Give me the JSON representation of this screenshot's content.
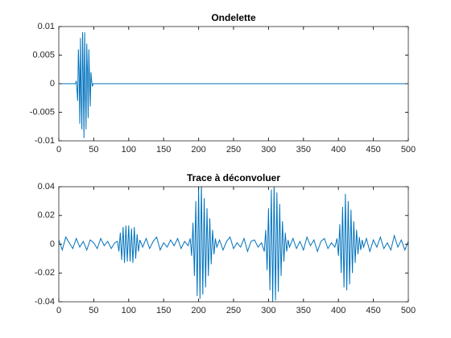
{
  "chart_data": [
    {
      "type": "line",
      "title": "Ondelette",
      "color": "#0072bd",
      "x": [
        0,
        24,
        25,
        26,
        27,
        28,
        29,
        30,
        31,
        32,
        33,
        34,
        35,
        36,
        37,
        38,
        39,
        40,
        41,
        42,
        43,
        44,
        45,
        46,
        47,
        48,
        49,
        500
      ],
      "values": [
        0,
        0,
        0.0005,
        -0.001,
        -0.003,
        0.006,
        0.002,
        -0.007,
        0.008,
        -0.002,
        -0.008,
        0.009,
        0.001,
        -0.0095,
        0.009,
        -0.001,
        -0.008,
        0.007,
        0.002,
        -0.006,
        0.006,
        0.001,
        -0.004,
        0.002,
        0.0005,
        -0.0005,
        0,
        0
      ],
      "xlim": [
        0,
        500
      ],
      "xticks": [
        0,
        50,
        100,
        150,
        200,
        250,
        300,
        350,
        400,
        450,
        500
      ],
      "ylim": [
        -0.01,
        0.01
      ],
      "yticks": [
        -0.01,
        -0.005,
        0,
        0.005,
        0.01
      ]
    },
    {
      "type": "line",
      "title": "Trace à déconvoluer",
      "color": "#0072bd",
      "x": [
        0,
        5,
        10,
        15,
        20,
        25,
        30,
        35,
        40,
        45,
        50,
        55,
        60,
        65,
        70,
        75,
        80,
        84,
        86,
        88,
        90,
        92,
        94,
        96,
        98,
        100,
        102,
        104,
        106,
        108,
        110,
        112,
        114,
        116,
        120,
        125,
        130,
        135,
        140,
        145,
        150,
        155,
        160,
        165,
        170,
        175,
        180,
        185,
        188,
        190,
        192,
        194,
        196,
        198,
        200,
        202,
        204,
        206,
        208,
        210,
        212,
        214,
        216,
        218,
        220,
        222,
        224,
        226,
        230,
        235,
        240,
        245,
        250,
        255,
        260,
        265,
        270,
        275,
        280,
        285,
        290,
        294,
        296,
        298,
        300,
        302,
        304,
        306,
        308,
        310,
        312,
        314,
        316,
        318,
        320,
        322,
        324,
        326,
        328,
        330,
        335,
        340,
        345,
        350,
        355,
        360,
        365,
        370,
        375,
        380,
        385,
        390,
        395,
        398,
        400,
        402,
        404,
        406,
        408,
        410,
        412,
        414,
        416,
        418,
        420,
        422,
        424,
        426,
        428,
        430,
        432,
        434,
        436,
        440,
        445,
        450,
        455,
        460,
        465,
        470,
        475,
        480,
        485,
        490,
        495,
        500
      ],
      "values": [
        0.003,
        -0.004,
        0.005,
        0.001,
        -0.003,
        0.004,
        -0.002,
        0.002,
        -0.004,
        0.003,
        0.001,
        -0.003,
        0.004,
        -0.001,
        0.002,
        -0.003,
        0.001,
        0.002,
        -0.005,
        0.008,
        -0.011,
        0.012,
        -0.013,
        0.013,
        -0.012,
        0.013,
        -0.012,
        0.011,
        -0.013,
        0.012,
        -0.01,
        0.007,
        -0.005,
        0.003,
        -0.002,
        0.004,
        -0.003,
        0.002,
        0.005,
        -0.004,
        0.001,
        -0.002,
        0.003,
        -0.001,
        0.004,
        -0.003,
        0.002,
        -0.001,
        0.004,
        -0.008,
        0.015,
        -0.022,
        0.03,
        -0.036,
        0.04,
        -0.038,
        0.042,
        -0.035,
        0.032,
        -0.03,
        0.025,
        -0.022,
        0.018,
        -0.014,
        0.01,
        -0.007,
        0.004,
        -0.002,
        0.003,
        -0.004,
        0.002,
        0.005,
        -0.003,
        0.001,
        -0.002,
        0.004,
        -0.005,
        0.002,
        0.003,
        -0.002,
        0.001,
        -0.005,
        0.01,
        -0.018,
        0.025,
        -0.032,
        0.038,
        -0.04,
        0.042,
        -0.039,
        0.036,
        -0.033,
        0.028,
        -0.022,
        0.016,
        -0.012,
        0.008,
        -0.005,
        0.003,
        -0.002,
        0.004,
        -0.003,
        0.002,
        -0.004,
        0.005,
        -0.001,
        0.003,
        -0.005,
        0.002,
        0.004,
        -0.003,
        0.001,
        -0.002,
        0.004,
        -0.008,
        0.014,
        -0.02,
        0.026,
        -0.03,
        0.035,
        -0.032,
        0.03,
        -0.028,
        0.024,
        -0.02,
        0.016,
        -0.013,
        0.01,
        -0.007,
        0.005,
        -0.004,
        0.003,
        -0.002,
        0.004,
        -0.005,
        0.003,
        -0.002,
        0.005,
        -0.003,
        0.001,
        -0.004,
        0.006,
        -0.002,
        0.003,
        -0.004,
        0.002
      ],
      "xlim": [
        0,
        500
      ],
      "xticks": [
        0,
        50,
        100,
        150,
        200,
        250,
        300,
        350,
        400,
        450,
        500
      ],
      "ylim": [
        -0.04,
        0.04
      ],
      "yticks": [
        -0.04,
        -0.02,
        0,
        0.02,
        0.04
      ]
    }
  ]
}
